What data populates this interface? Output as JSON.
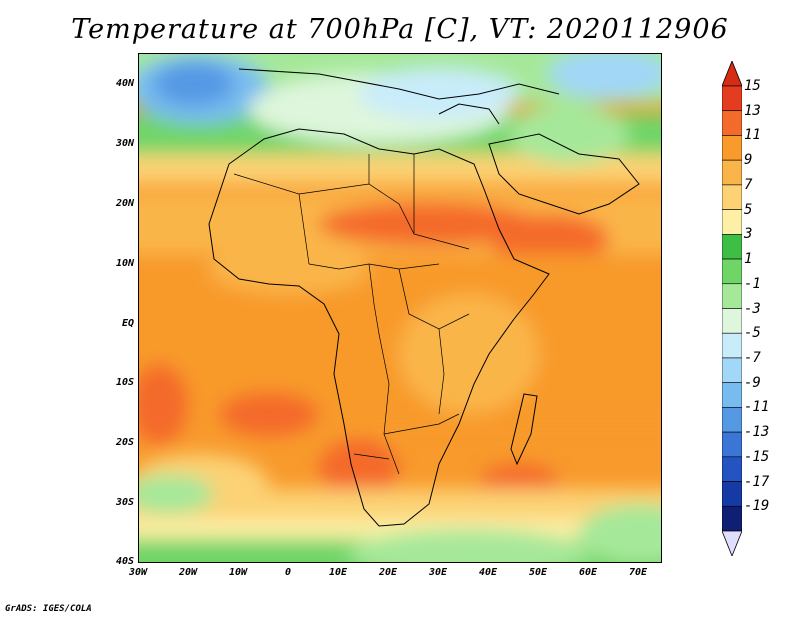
{
  "title": "Temperature at 700hPa [C], VT: 2020112906",
  "footer": "GrADS: IGES/COLA",
  "map": {
    "lon_range": [
      -30,
      75
    ],
    "lat_range": [
      -40,
      45
    ],
    "lat_ticks": [
      {
        "value": 40,
        "label": "40N"
      },
      {
        "value": 30,
        "label": "30N"
      },
      {
        "value": 20,
        "label": "20N"
      },
      {
        "value": 10,
        "label": "10N"
      },
      {
        "value": 0,
        "label": "EQ"
      },
      {
        "value": -10,
        "label": "10S"
      },
      {
        "value": -20,
        "label": "20S"
      },
      {
        "value": -30,
        "label": "30S"
      },
      {
        "value": -40,
        "label": "40S"
      }
    ],
    "lon_ticks": [
      {
        "value": -30,
        "label": "30W"
      },
      {
        "value": -20,
        "label": "20W"
      },
      {
        "value": -10,
        "label": "10W"
      },
      {
        "value": 0,
        "label": "0"
      },
      {
        "value": 10,
        "label": "10E"
      },
      {
        "value": 20,
        "label": "20E"
      },
      {
        "value": 30,
        "label": "30E"
      },
      {
        "value": 40,
        "label": "40E"
      },
      {
        "value": 50,
        "label": "50E"
      },
      {
        "value": 60,
        "label": "60E"
      },
      {
        "value": 70,
        "label": "70E"
      }
    ]
  },
  "colorbar": {
    "labels": [
      "15",
      "13",
      "11",
      "9",
      "7",
      "5",
      "3",
      "1",
      "-1",
      "-3",
      "-5",
      "-7",
      "-9",
      "-11",
      "-13",
      "-15",
      "-17",
      "-19"
    ],
    "colors": [
      "#e43c1e",
      "#f46a2a",
      "#f89a2c",
      "#fab54a",
      "#fcd275",
      "#fdf0a6",
      "#3fbe45",
      "#6fd567",
      "#a6e89a",
      "#def6dc",
      "#c9ecfb",
      "#a2d7f7",
      "#78bcef",
      "#5599e4",
      "#3b75d6",
      "#2454c2",
      "#163aa5",
      "#0e1f74"
    ],
    "top_color": "#d62c14",
    "bottom_color": "#e0deff"
  }
}
